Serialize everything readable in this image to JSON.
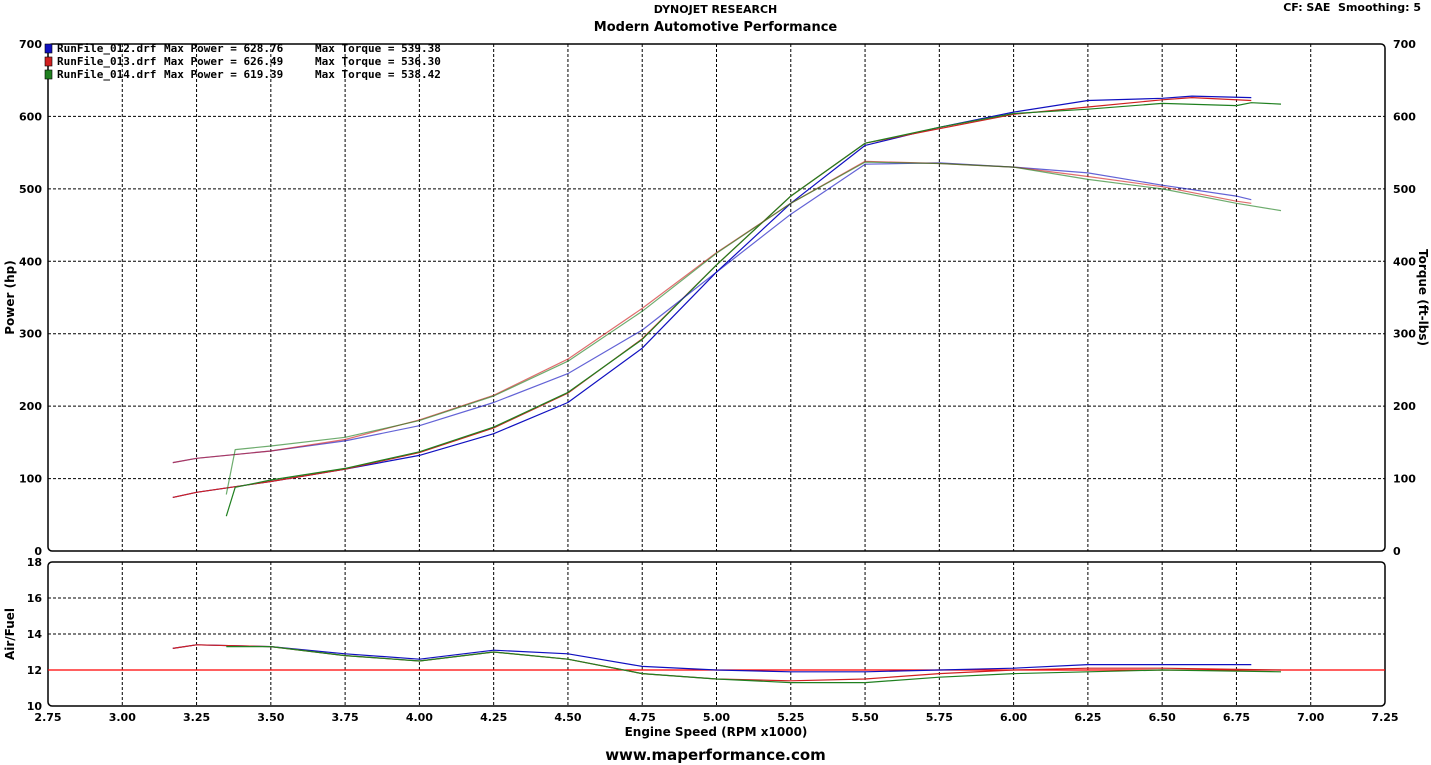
{
  "header": {
    "line1": "DYNOJET RESEARCH",
    "line2": "Modern Automotive Performance",
    "cf": "CF: SAE  Smoothing: 5"
  },
  "footer": {
    "website": "www.maperformance.com"
  },
  "colors": {
    "run1": "#1010c0",
    "run2": "#d02020",
    "run3": "#208020",
    "afr_target": "#ff0000",
    "grid": "#000000"
  },
  "chart_data": [
    {
      "type": "line",
      "panel": "power-torque",
      "xlabel": "Engine Speed (RPM x1000)",
      "ylabel": "Power (hp)",
      "y2label": "Torque (ft-lbs)",
      "xlim": [
        2.75,
        7.25
      ],
      "ylim": [
        0,
        700
      ],
      "y2lim": [
        0,
        700
      ],
      "x_ticks": [
        "2.75",
        "3.00",
        "3.25",
        "3.50",
        "3.75",
        "4.00",
        "4.25",
        "4.50",
        "4.75",
        "5.00",
        "5.25",
        "5.50",
        "5.75",
        "6.00",
        "6.25",
        "6.50",
        "6.75",
        "7.00",
        "7.25"
      ],
      "y_ticks": [
        "0",
        "100",
        "200",
        "300",
        "400",
        "500",
        "600",
        "700"
      ],
      "grid": true,
      "legend_position": "top-left",
      "legend": [
        {
          "file": "RunFile_012.drf",
          "power_label": "Max Power = 628.76",
          "torque_label": "Max Torque = 539.38"
        },
        {
          "file": "RunFile_013.drf",
          "power_label": "Max Power = 626.49",
          "torque_label": "Max Torque = 536.30"
        },
        {
          "file": "RunFile_014.drf",
          "power_label": "Max Power = 619.39",
          "torque_label": "Max Torque = 538.42"
        }
      ],
      "series": [
        {
          "name": "RunFile_012.drf",
          "measure": "power",
          "color": "#1010c0",
          "x": [
            3.17,
            3.25,
            3.5,
            3.75,
            4.0,
            4.25,
            4.5,
            4.75,
            5.0,
            5.25,
            5.5,
            5.75,
            6.0,
            6.25,
            6.5,
            6.6,
            6.8
          ],
          "y": [
            74,
            81,
            96,
            113,
            132,
            162,
            205,
            280,
            385,
            480,
            560,
            585,
            606,
            622,
            625,
            628,
            626
          ]
        },
        {
          "name": "RunFile_013.drf",
          "measure": "power",
          "color": "#d02020",
          "x": [
            3.17,
            3.25,
            3.5,
            3.75,
            4.0,
            4.25,
            4.5,
            4.75,
            5.0,
            5.25,
            5.5,
            5.75,
            6.0,
            6.25,
            6.5,
            6.6,
            6.8
          ],
          "y": [
            74,
            81,
            96,
            113,
            136,
            170,
            218,
            293,
            395,
            490,
            563,
            583,
            603,
            613,
            623,
            626,
            622
          ]
        },
        {
          "name": "RunFile_014.drf",
          "measure": "power",
          "color": "#208020",
          "x": [
            3.35,
            3.38,
            3.5,
            3.75,
            4.0,
            4.25,
            4.5,
            4.75,
            5.0,
            5.25,
            5.5,
            5.75,
            6.0,
            6.25,
            6.5,
            6.75,
            6.8,
            6.9
          ],
          "y": [
            48,
            88,
            98,
            114,
            137,
            171,
            219,
            292,
            395,
            490,
            563,
            585,
            604,
            610,
            618,
            615,
            619,
            617
          ]
        },
        {
          "name": "RunFile_012.drf",
          "measure": "torque",
          "color": "#1010c0",
          "x": [
            3.17,
            3.25,
            3.5,
            3.75,
            4.0,
            4.25,
            4.5,
            4.75,
            5.0,
            5.25,
            5.5,
            5.75,
            6.0,
            6.25,
            6.5,
            6.75,
            6.8
          ],
          "y": [
            122,
            128,
            138,
            152,
            173,
            205,
            245,
            305,
            385,
            465,
            534,
            536,
            530,
            522,
            505,
            490,
            485
          ]
        },
        {
          "name": "RunFile_013.drf",
          "measure": "torque",
          "color": "#d02020",
          "x": [
            3.17,
            3.25,
            3.5,
            3.75,
            4.0,
            4.25,
            4.5,
            4.75,
            5.0,
            5.25,
            5.5,
            5.75,
            6.0,
            6.25,
            6.5,
            6.75,
            6.8
          ],
          "y": [
            122,
            128,
            138,
            154,
            181,
            215,
            265,
            335,
            412,
            480,
            538,
            535,
            530,
            517,
            503,
            483,
            480
          ]
        },
        {
          "name": "RunFile_014.drf",
          "measure": "torque",
          "color": "#208020",
          "x": [
            3.35,
            3.38,
            3.5,
            3.75,
            4.0,
            4.25,
            4.5,
            4.75,
            5.0,
            5.25,
            5.5,
            5.75,
            6.0,
            6.25,
            6.5,
            6.75,
            6.9
          ],
          "y": [
            78,
            140,
            145,
            157,
            180,
            214,
            262,
            331,
            411,
            480,
            537,
            535,
            530,
            513,
            500,
            480,
            470
          ]
        }
      ]
    },
    {
      "type": "line",
      "panel": "air-fuel",
      "ylabel": "Air/Fuel",
      "xlim": [
        2.75,
        7.25
      ],
      "ylim": [
        10,
        18
      ],
      "y_ticks": [
        "10",
        "12",
        "14",
        "16",
        "18"
      ],
      "grid": true,
      "reference_line": {
        "y": 12,
        "color": "#ff0000"
      },
      "series": [
        {
          "name": "RunFile_012.drf",
          "color": "#1010c0",
          "x": [
            3.17,
            3.25,
            3.5,
            3.75,
            4.0,
            4.25,
            4.5,
            4.75,
            5.0,
            5.25,
            5.5,
            5.75,
            6.0,
            6.25,
            6.5,
            6.8
          ],
          "y": [
            13.2,
            13.4,
            13.3,
            12.9,
            12.6,
            13.1,
            12.9,
            12.2,
            12.0,
            11.9,
            11.9,
            12.0,
            12.1,
            12.3,
            12.3,
            12.3
          ]
        },
        {
          "name": "RunFile_013.drf",
          "color": "#d02020",
          "x": [
            3.17,
            3.25,
            3.5,
            3.75,
            4.0,
            4.25,
            4.5,
            4.75,
            5.0,
            5.25,
            5.5,
            5.75,
            6.0,
            6.25,
            6.5,
            6.9
          ],
          "y": [
            13.2,
            13.4,
            13.3,
            12.8,
            12.5,
            13.0,
            12.6,
            11.8,
            11.5,
            11.4,
            11.5,
            11.8,
            12.0,
            12.1,
            12.1,
            12.0
          ]
        },
        {
          "name": "RunFile_014.drf",
          "color": "#208020",
          "x": [
            3.35,
            3.5,
            3.75,
            4.0,
            4.25,
            4.5,
            4.75,
            5.0,
            5.25,
            5.5,
            5.75,
            6.0,
            6.25,
            6.5,
            6.9
          ],
          "y": [
            13.3,
            13.3,
            12.8,
            12.5,
            13.0,
            12.6,
            11.8,
            11.5,
            11.3,
            11.3,
            11.6,
            11.8,
            11.9,
            12.0,
            11.9
          ]
        }
      ]
    }
  ]
}
